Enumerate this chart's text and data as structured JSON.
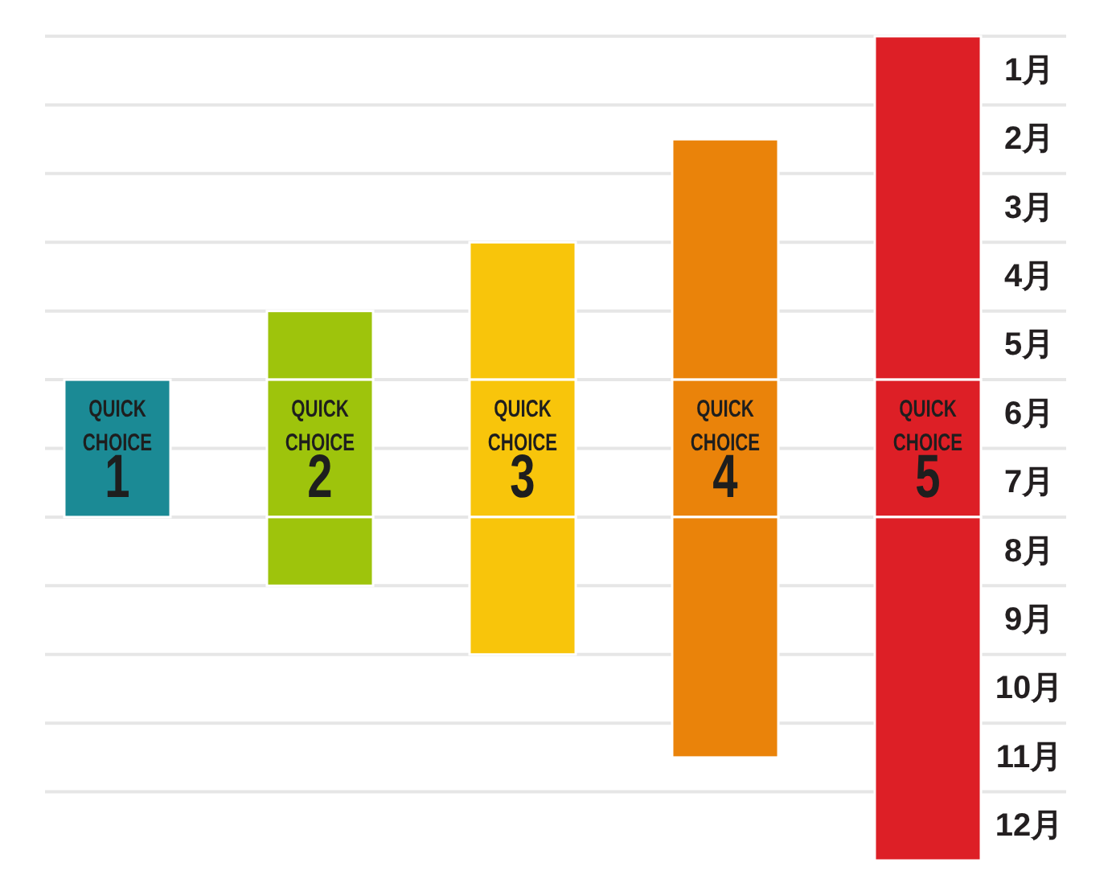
{
  "chart_data": {
    "type": "bar",
    "categories": [
      "QUICK CHOICE 1",
      "QUICK CHOICE 2",
      "QUICK CHOICE 3",
      "QUICK CHOICE 4",
      "QUICK CHOICE 5"
    ],
    "series": [
      {
        "colors": [
          null,
          "#9ec40c",
          "#f8c50b",
          "#ea830a",
          "#dd1f26"
        ],
        "base": [
          null,
          5,
          4,
          2.5,
          1
        ],
        "values": [
          null,
          1,
          2,
          3.5,
          5
        ]
      },
      {
        "colors": [
          "#1b8a95",
          "#9ec40c",
          "#f8c50b",
          "#ea830a",
          "#dd1f26"
        ],
        "base": [
          6,
          6,
          6,
          6,
          6
        ],
        "values": [
          2,
          2,
          2,
          2,
          2
        ]
      },
      {
        "colors": [
          null,
          "#9ec40c",
          "#f8c50b",
          "#ea830a",
          "#dd1f26"
        ],
        "base": [
          null,
          8,
          8,
          8,
          8
        ],
        "values": [
          null,
          1,
          2,
          3.5,
          5
        ]
      }
    ],
    "ylim": [
      13,
      1
    ],
    "yticks": [
      {
        "value": 1,
        "label": "1月"
      },
      {
        "value": 2,
        "label": "2月"
      },
      {
        "value": 3,
        "label": "3月"
      },
      {
        "value": 4,
        "label": "4月"
      },
      {
        "value": 5,
        "label": "5月"
      },
      {
        "value": 6,
        "label": "6月"
      },
      {
        "value": 7,
        "label": "7月"
      },
      {
        "value": 8,
        "label": "8月"
      },
      {
        "value": 9,
        "label": "9月"
      },
      {
        "value": 10,
        "label": "10月"
      },
      {
        "value": 11,
        "label": "11月"
      },
      {
        "value": 12,
        "label": "12月"
      }
    ],
    "grid": "y"
  }
}
